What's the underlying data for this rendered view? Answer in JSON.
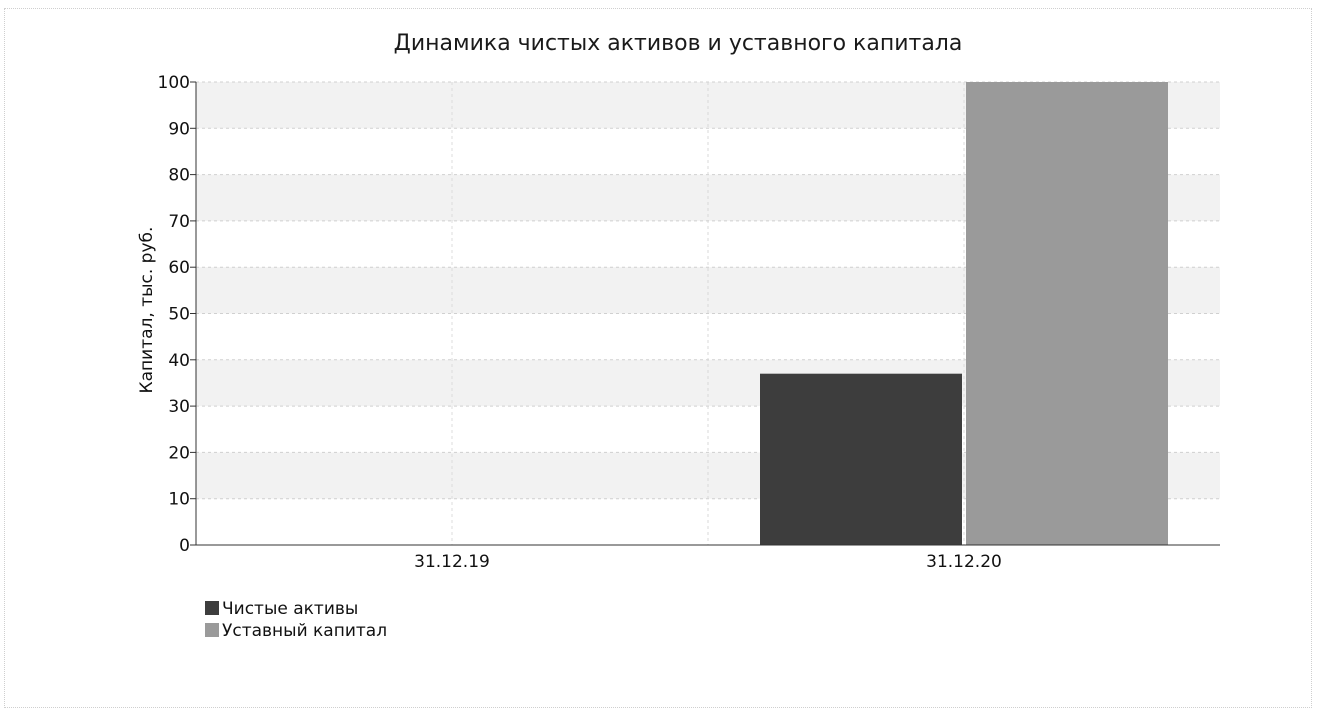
{
  "chart_data": {
    "type": "bar",
    "title": "Динамика чистых активов и уставного капитала",
    "xlabel": "",
    "ylabel": "Капитал, тыс. руб.",
    "categories": [
      "31.12.19",
      "31.12.20"
    ],
    "ylim": [
      0,
      100
    ],
    "yticks": [
      0,
      10,
      20,
      30,
      40,
      50,
      60,
      70,
      80,
      90,
      100
    ],
    "grid": true,
    "legend_position": "bottom-left",
    "series": [
      {
        "name": "Чистые активы",
        "values": [
          0,
          37
        ],
        "color": "#3d3d3d"
      },
      {
        "name": "Уставный капитал",
        "values": [
          0,
          100
        ],
        "color": "#9a9a9a"
      }
    ]
  }
}
